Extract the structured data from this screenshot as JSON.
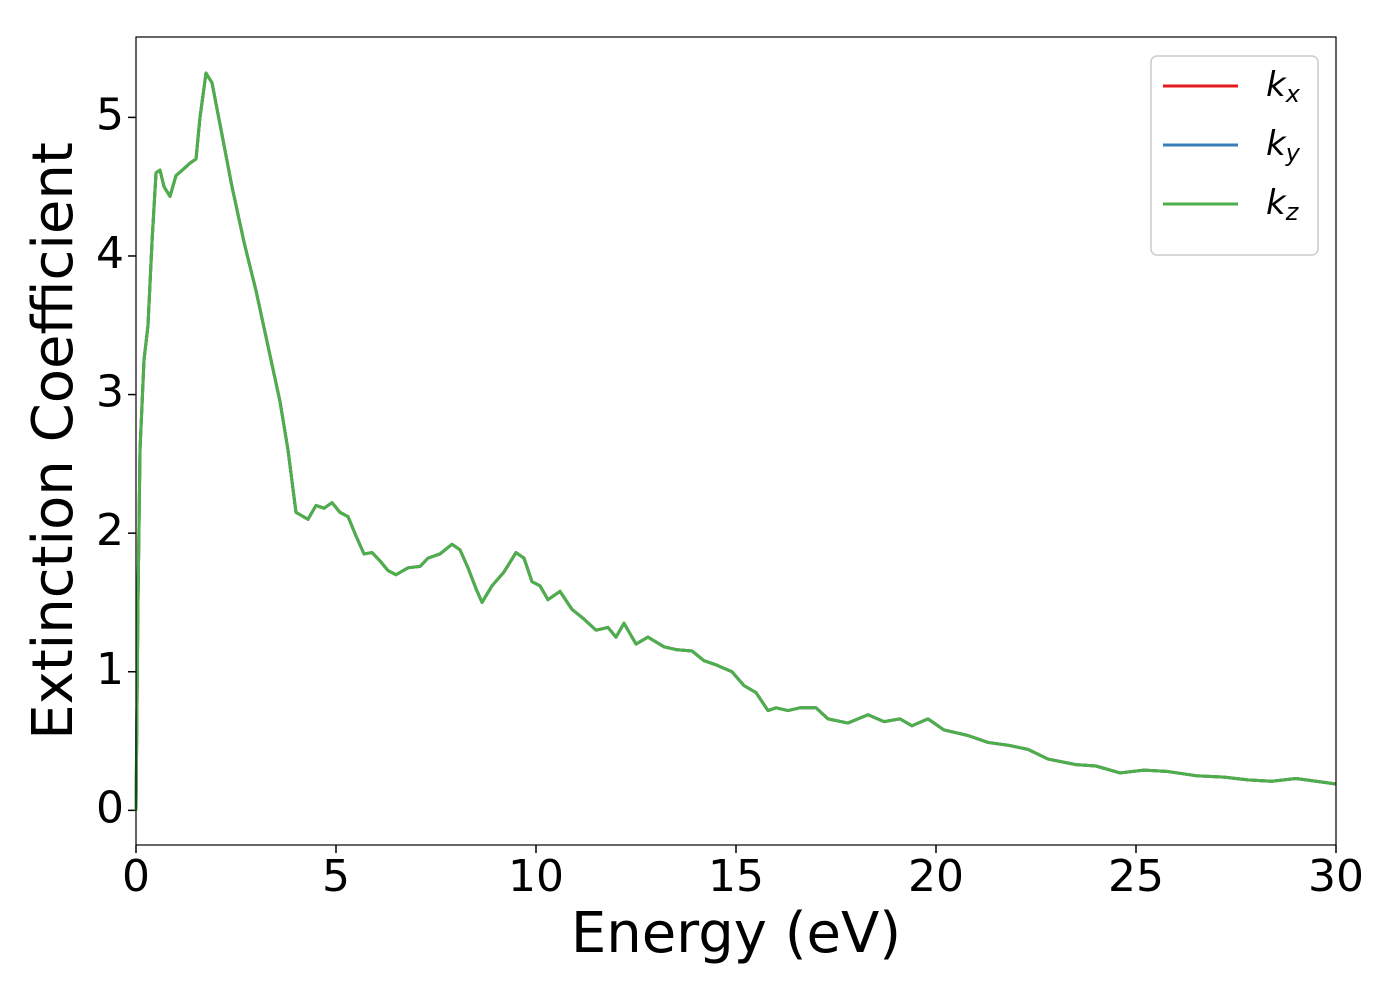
{
  "chart_data": {
    "type": "line",
    "xlabel": "Energy (eV)",
    "ylabel": "Extinction Coefficient",
    "x": [
      0,
      0.05,
      0.1,
      0.2,
      0.3,
      0.4,
      0.5,
      0.6,
      0.7,
      0.85,
      1.0,
      1.2,
      1.35,
      1.5,
      1.6,
      1.75,
      1.9,
      2.1,
      2.4,
      2.7,
      3.0,
      3.3,
      3.6,
      3.8,
      4.0,
      4.3,
      4.5,
      4.7,
      4.9,
      5.1,
      5.3,
      5.5,
      5.7,
      5.9,
      6.1,
      6.3,
      6.5,
      6.8,
      7.1,
      7.3,
      7.6,
      7.9,
      8.1,
      8.3,
      8.5,
      8.65,
      8.9,
      9.2,
      9.5,
      9.7,
      9.9,
      10.1,
      10.3,
      10.6,
      10.9,
      11.2,
      11.5,
      11.8,
      12.0,
      12.2,
      12.5,
      12.8,
      13.2,
      13.5,
      13.9,
      14.2,
      14.5,
      14.9,
      15.2,
      15.5,
      15.8,
      16.0,
      16.3,
      16.6,
      17.0,
      17.3,
      17.8,
      18.3,
      18.7,
      19.1,
      19.4,
      19.8,
      20.2,
      20.8,
      21.3,
      21.8,
      22.3,
      22.8,
      23.5,
      24.0,
      24.6,
      25.2,
      25.8,
      26.5,
      27.2,
      27.8,
      28.4,
      29.0,
      29.5,
      30.0
    ],
    "series": [
      {
        "name": "kx",
        "color": "#e41a1c",
        "values": [
          0,
          1.5,
          2.6,
          3.25,
          3.5,
          4.1,
          4.6,
          4.62,
          4.5,
          4.43,
          4.58,
          4.63,
          4.67,
          4.7,
          5.0,
          5.32,
          5.25,
          4.95,
          4.5,
          4.1,
          3.75,
          3.35,
          2.95,
          2.6,
          2.15,
          2.1,
          2.2,
          2.18,
          2.22,
          2.15,
          2.12,
          1.98,
          1.85,
          1.86,
          1.8,
          1.73,
          1.7,
          1.75,
          1.76,
          1.82,
          1.85,
          1.92,
          1.88,
          1.75,
          1.6,
          1.5,
          1.62,
          1.72,
          1.86,
          1.82,
          1.65,
          1.62,
          1.52,
          1.58,
          1.45,
          1.38,
          1.3,
          1.32,
          1.25,
          1.35,
          1.2,
          1.25,
          1.18,
          1.16,
          1.15,
          1.08,
          1.05,
          1.0,
          0.9,
          0.85,
          0.72,
          0.74,
          0.72,
          0.74,
          0.74,
          0.66,
          0.63,
          0.69,
          0.64,
          0.66,
          0.61,
          0.66,
          0.58,
          0.54,
          0.49,
          0.47,
          0.44,
          0.37,
          0.33,
          0.32,
          0.27,
          0.29,
          0.28,
          0.25,
          0.24,
          0.22,
          0.21,
          0.23,
          0.21,
          0.19
        ]
      },
      {
        "name": "ky",
        "color": "#377eb8",
        "values": [
          0,
          1.5,
          2.6,
          3.25,
          3.5,
          4.1,
          4.6,
          4.62,
          4.5,
          4.43,
          4.58,
          4.63,
          4.67,
          4.7,
          5.0,
          5.32,
          5.25,
          4.95,
          4.5,
          4.1,
          3.75,
          3.35,
          2.95,
          2.6,
          2.15,
          2.1,
          2.2,
          2.18,
          2.22,
          2.15,
          2.12,
          1.98,
          1.85,
          1.86,
          1.8,
          1.73,
          1.7,
          1.75,
          1.76,
          1.82,
          1.85,
          1.92,
          1.88,
          1.75,
          1.6,
          1.5,
          1.62,
          1.72,
          1.86,
          1.82,
          1.65,
          1.62,
          1.52,
          1.58,
          1.45,
          1.38,
          1.3,
          1.32,
          1.25,
          1.35,
          1.2,
          1.25,
          1.18,
          1.16,
          1.15,
          1.08,
          1.05,
          1.0,
          0.9,
          0.85,
          0.72,
          0.74,
          0.72,
          0.74,
          0.74,
          0.66,
          0.63,
          0.69,
          0.64,
          0.66,
          0.61,
          0.66,
          0.58,
          0.54,
          0.49,
          0.47,
          0.44,
          0.37,
          0.33,
          0.32,
          0.27,
          0.29,
          0.28,
          0.25,
          0.24,
          0.22,
          0.21,
          0.23,
          0.21,
          0.19
        ]
      },
      {
        "name": "kz",
        "color": "#4daf4a",
        "values": [
          0,
          1.5,
          2.6,
          3.25,
          3.5,
          4.1,
          4.6,
          4.62,
          4.5,
          4.43,
          4.58,
          4.63,
          4.67,
          4.7,
          5.0,
          5.32,
          5.25,
          4.95,
          4.5,
          4.1,
          3.75,
          3.35,
          2.95,
          2.6,
          2.15,
          2.1,
          2.2,
          2.18,
          2.22,
          2.15,
          2.12,
          1.98,
          1.85,
          1.86,
          1.8,
          1.73,
          1.7,
          1.75,
          1.76,
          1.82,
          1.85,
          1.92,
          1.88,
          1.75,
          1.6,
          1.5,
          1.62,
          1.72,
          1.86,
          1.82,
          1.65,
          1.62,
          1.52,
          1.58,
          1.45,
          1.38,
          1.3,
          1.32,
          1.25,
          1.35,
          1.2,
          1.25,
          1.18,
          1.16,
          1.15,
          1.08,
          1.05,
          1.0,
          0.9,
          0.85,
          0.72,
          0.74,
          0.72,
          0.74,
          0.74,
          0.66,
          0.63,
          0.69,
          0.64,
          0.66,
          0.61,
          0.66,
          0.58,
          0.54,
          0.49,
          0.47,
          0.44,
          0.37,
          0.33,
          0.32,
          0.27,
          0.29,
          0.28,
          0.25,
          0.24,
          0.22,
          0.21,
          0.23,
          0.21,
          0.19
        ]
      }
    ],
    "xlim": [
      0,
      30
    ],
    "xticks": [
      0,
      5,
      10,
      15,
      20,
      25,
      30
    ],
    "ylim": [
      -0.25,
      5.58
    ],
    "yticks": [
      0,
      1,
      2,
      3,
      4,
      5
    ],
    "legend": "upper right",
    "grid": false
  }
}
